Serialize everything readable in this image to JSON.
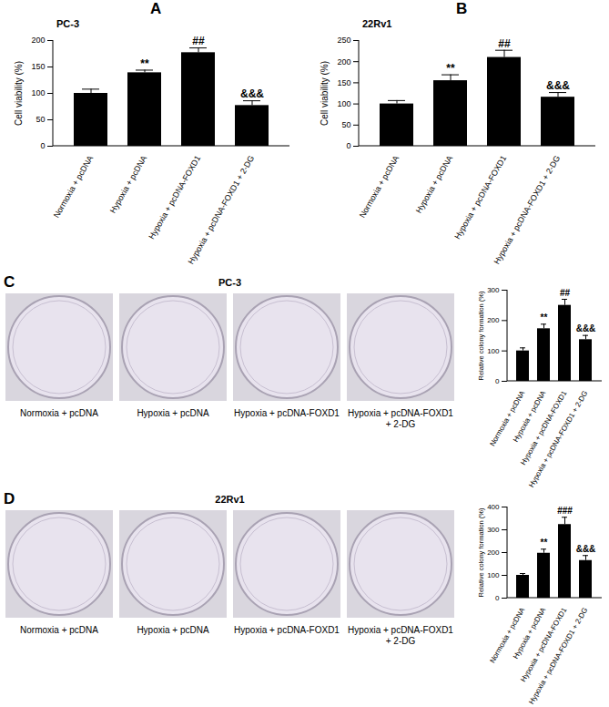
{
  "chart_data": [
    {
      "panel_label": "A",
      "type": "bar",
      "title": "PC-3",
      "categories": [
        "Normoxia + pcDNA",
        "Hypoxia + pcDNA",
        "Hypoxia + pcDNA-FOXD1",
        "Hypoxia + pcDNA-FOXD1 + 2-DG"
      ],
      "values": [
        100,
        139,
        177,
        77
      ],
      "errors": [
        8,
        5,
        9,
        9
      ],
      "annotations": [
        null,
        "**",
        "##",
        "&&&"
      ],
      "ylabel": "Cell viability (%)",
      "ylim": [
        0,
        200
      ],
      "yticks": [
        0,
        50,
        100,
        150,
        200
      ],
      "color": "#000000"
    },
    {
      "panel_label": "B",
      "type": "bar",
      "title": "22Rv1",
      "categories": [
        "Normoxia + pcDNA",
        "Hypoxia + pcDNA",
        "Hypoxia + pcDNA-FOXD1",
        "Hypoxia + pcDNA-FOXD1 + 2-DG"
      ],
      "values": [
        100,
        155,
        210,
        116
      ],
      "errors": [
        8,
        14,
        17,
        11
      ],
      "annotations": [
        null,
        "**",
        "##",
        "&&&"
      ],
      "ylabel": "Cell viability (%)",
      "ylim": [
        0,
        250
      ],
      "yticks": [
        0,
        50,
        100,
        150,
        200,
        250
      ],
      "color": "#000000"
    },
    {
      "panel_label": "C",
      "type": "bar",
      "plate_title": "PC-3",
      "plate_labels": [
        "Normoxia + pcDNA",
        "Hypoxia + pcDNA",
        "Hypoxia + pcDNA-FOXD1",
        "Hypoxia + pcDNA-FOXD1 + 2-DG"
      ],
      "categories": [
        "Normoxia + pcDNA",
        "Hypoxia + pcDNA",
        "Hypoxia + pcDNA-FOXD1",
        "Hypoxia + pcDNA-FOXD1 + 2-DG"
      ],
      "values": [
        100,
        173,
        250,
        137
      ],
      "errors": [
        10,
        15,
        20,
        14
      ],
      "annotations": [
        null,
        "**",
        "##",
        "&&&"
      ],
      "ylabel": "Relative colony formation (%)",
      "ylim": [
        0,
        300
      ],
      "yticks": [
        0,
        100,
        200,
        300
      ],
      "color": "#000000"
    },
    {
      "panel_label": "D",
      "type": "bar",
      "plate_title": "22Rv1",
      "plate_labels": [
        "Normoxia + pcDNA",
        "Hypoxia + pcDNA",
        "Hypoxia + pcDNA-FOXD1",
        "Hypoxia + pcDNA-FOXD1 + 2-DG"
      ],
      "categories": [
        "Normoxia + pcDNA",
        "Hypoxia + pcDNA",
        "Hypoxia + pcDNA-FOXD1",
        "Hypoxia + pcDNA-FOXD1 + 2-DG"
      ],
      "values": [
        100,
        197,
        323,
        165
      ],
      "errors": [
        8,
        18,
        32,
        22
      ],
      "annotations": [
        null,
        "**",
        "###",
        "&&&"
      ],
      "ylabel": "Relative colony formation (%)",
      "ylim": [
        0,
        400
      ],
      "yticks": [
        0,
        100,
        200,
        300,
        400
      ],
      "color": "#000000"
    }
  ]
}
